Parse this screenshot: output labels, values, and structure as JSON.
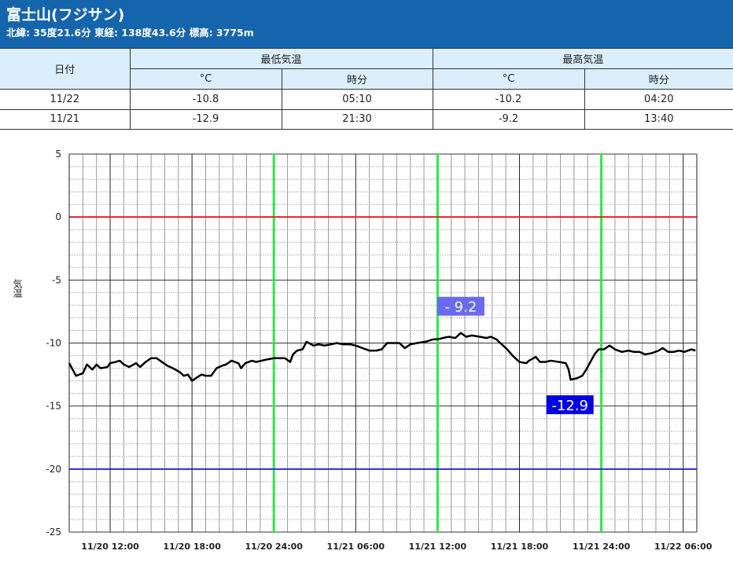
{
  "header": {
    "title": "富士山(フジサン)",
    "subtitle": "北緯: 35度21.6分 東経: 138度43.6分 標高: 3775m"
  },
  "table": {
    "date_label": "日付",
    "min_label": "最低気温",
    "max_label": "最高気温",
    "unit_label": "°C",
    "time_label": "時分",
    "rows": [
      {
        "date": "11/22",
        "min": "-10.8",
        "min_time": "05:10",
        "max": "-10.2",
        "max_time": "04:20"
      },
      {
        "date": "11/21",
        "min": "-12.9",
        "min_time": "21:30",
        "max": "-9.2",
        "max_time": "13:40"
      }
    ]
  },
  "chart_data": {
    "type": "line",
    "ylabel": "気温",
    "ylim": [
      -25,
      5
    ],
    "yticks": [
      5,
      0,
      -5,
      -10,
      -15,
      -20,
      -25
    ],
    "x_unit": "hours since 11/20 00:00",
    "xlim": [
      9,
      55
    ],
    "xticks": [
      {
        "h": 12,
        "label": "11/20 12:00"
      },
      {
        "h": 18,
        "label": "11/20 18:00"
      },
      {
        "h": 24,
        "label": "11/20 24:00"
      },
      {
        "h": 30,
        "label": "11/21 06:00"
      },
      {
        "h": 36,
        "label": "11/21 12:00"
      },
      {
        "h": 42,
        "label": "11/21 18:00"
      },
      {
        "h": 48,
        "label": "11/21 24:00"
      },
      {
        "h": 54,
        "label": "11/22 06:00"
      }
    ],
    "day_boundaries": [
      24,
      36,
      48
    ],
    "reference_lines": [
      {
        "y": 0,
        "color": "#e82020"
      },
      {
        "y": -20,
        "color": "#2a2ae0"
      }
    ],
    "annotations": [
      {
        "text": "- 9.2",
        "h": 37.7,
        "y": -9.2,
        "color": "#6a6af0"
      },
      {
        "text": "-12.9",
        "h": 45.7,
        "y": -12.9,
        "color": "#0000e0"
      }
    ],
    "series": [
      {
        "name": "気温",
        "x": [
          9.0,
          9.5,
          10.0,
          10.3,
          10.7,
          11.0,
          11.3,
          11.8,
          12.0,
          12.4,
          12.7,
          13.0,
          13.4,
          13.9,
          14.2,
          14.6,
          15.0,
          15.4,
          15.8,
          16.2,
          16.6,
          17.1,
          17.4,
          17.7,
          18.0,
          18.4,
          18.7,
          19.0,
          19.4,
          19.8,
          20.2,
          20.5,
          20.9,
          21.4,
          21.6,
          21.9,
          22.4,
          22.7,
          23.1,
          23.5,
          24.0,
          24.5,
          24.8,
          25.2,
          25.4,
          25.7,
          26.1,
          26.4,
          26.9,
          27.3,
          27.7,
          28.2,
          28.6,
          29.1,
          29.6,
          30.0,
          30.5,
          31.0,
          31.5,
          31.9,
          32.3,
          32.8,
          33.2,
          33.6,
          34.0,
          34.5,
          35.1,
          35.7,
          36.0,
          36.4,
          36.8,
          37.3,
          37.7,
          38.1,
          38.5,
          39.1,
          39.6,
          39.9,
          40.3,
          40.7,
          41.1,
          41.5,
          42.0,
          42.5,
          42.7,
          43.2,
          43.5,
          43.9,
          44.3,
          44.9,
          45.4,
          45.6,
          45.75,
          46.2,
          46.6,
          46.9,
          47.2,
          47.5,
          47.8,
          48.2,
          48.6,
          49.0,
          49.5,
          50.0,
          50.4,
          50.8,
          51.2,
          51.7,
          52.2,
          52.5,
          52.9,
          53.3,
          53.7,
          54.1,
          54.6,
          54.9
        ],
        "y": [
          -11.6,
          -12.6,
          -12.4,
          -11.7,
          -12.1,
          -11.7,
          -12.0,
          -11.9,
          -11.6,
          -11.5,
          -11.4,
          -11.7,
          -11.9,
          -11.6,
          -11.9,
          -11.5,
          -11.2,
          -11.2,
          -11.5,
          -11.8,
          -12.0,
          -12.3,
          -12.6,
          -12.5,
          -13.0,
          -12.7,
          -12.5,
          -12.6,
          -12.6,
          -12.0,
          -11.8,
          -11.7,
          -11.4,
          -11.6,
          -12.0,
          -11.6,
          -11.4,
          -11.5,
          -11.4,
          -11.3,
          -11.2,
          -11.2,
          -11.2,
          -11.5,
          -10.9,
          -10.6,
          -10.5,
          -9.9,
          -10.2,
          -10.1,
          -10.2,
          -10.1,
          -10.0,
          -10.1,
          -10.1,
          -10.2,
          -10.4,
          -10.6,
          -10.6,
          -10.5,
          -10.0,
          -10.0,
          -10.0,
          -10.4,
          -10.1,
          -10.0,
          -9.9,
          -9.7,
          -9.7,
          -9.6,
          -9.5,
          -9.6,
          -9.2,
          -9.5,
          -9.4,
          -9.5,
          -9.6,
          -9.5,
          -9.7,
          -10.1,
          -10.5,
          -11.0,
          -11.5,
          -11.6,
          -11.4,
          -11.1,
          -11.5,
          -11.5,
          -11.4,
          -11.5,
          -11.6,
          -12.1,
          -12.9,
          -12.8,
          -12.6,
          -12.1,
          -11.5,
          -10.9,
          -10.5,
          -10.5,
          -10.2,
          -10.5,
          -10.7,
          -10.6,
          -10.7,
          -10.7,
          -10.9,
          -10.8,
          -10.6,
          -10.4,
          -10.7,
          -10.7,
          -10.6,
          -10.7,
          -10.5,
          -10.6
        ]
      }
    ]
  }
}
